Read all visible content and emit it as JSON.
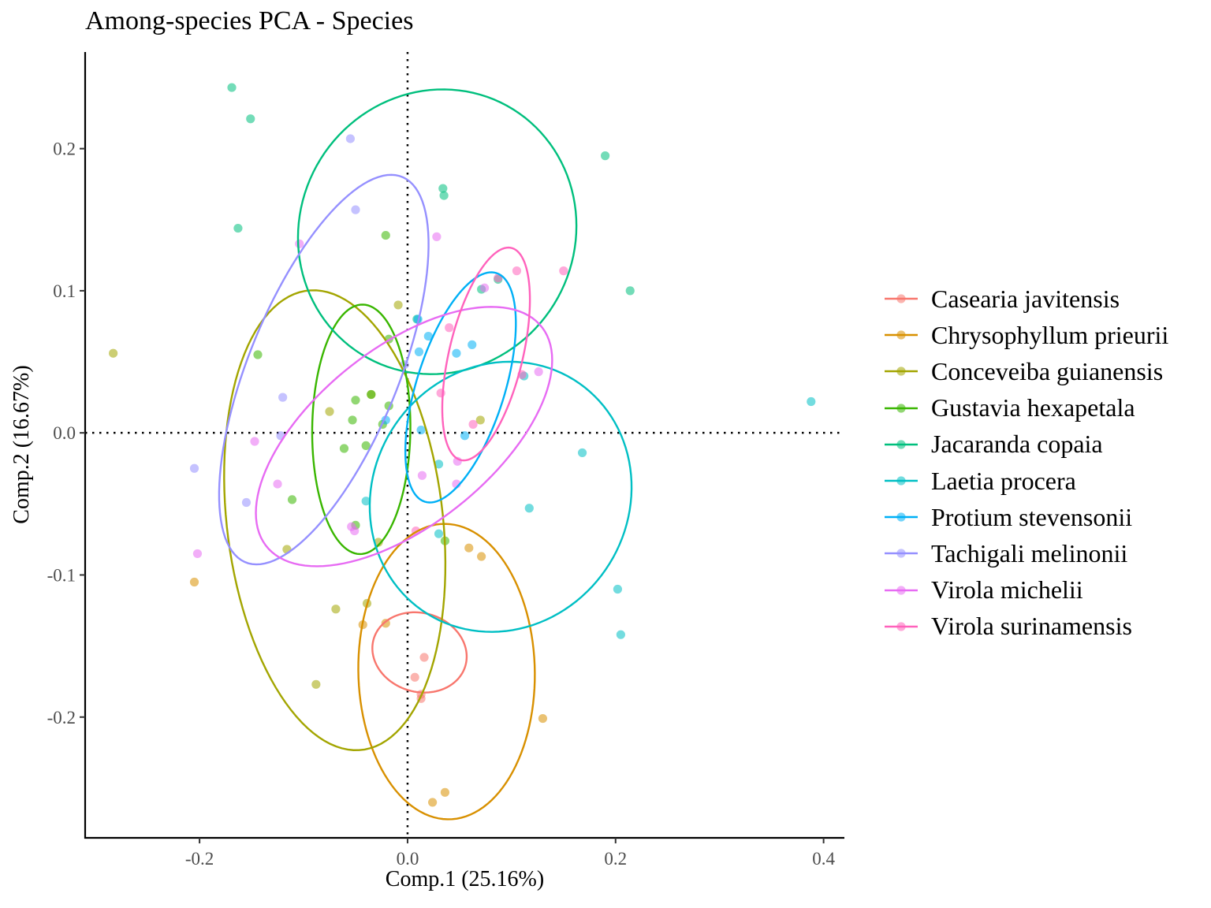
{
  "chart_data": {
    "type": "scatter",
    "title": "Among-species PCA - Species",
    "xlabel": "Comp.1 (25.16%)",
    "ylabel": "Comp.2 (16.67%)",
    "xlim": [
      -0.31,
      0.42
    ],
    "ylim": [
      -0.285,
      0.268
    ],
    "xticks": [
      -0.2,
      0.0,
      0.2,
      0.4
    ],
    "xtick_labels": [
      "-0.2",
      "0.0",
      "0.2",
      "0.4"
    ],
    "yticks": [
      -0.2,
      -0.1,
      0.0,
      0.1,
      0.2
    ],
    "ytick_labels": [
      "-0.2",
      "-0.1",
      "0.0",
      "0.1",
      "0.2"
    ],
    "reference_lines": {
      "x": 0,
      "y": 0,
      "style": "dotted"
    },
    "grid": false,
    "legend_position": "right",
    "series": [
      {
        "name": "Casearia javitensis",
        "color": "#F8766D",
        "points": [
          [
            0.016,
            -0.158
          ],
          [
            0.007,
            -0.172
          ],
          [
            0.013,
            -0.184
          ],
          [
            0.013,
            -0.187
          ]
        ],
        "ellipse": {
          "cx": 0.0115,
          "cy": -0.1545,
          "rx": 0.028,
          "ry": 0.0455,
          "angle": 84
        }
      },
      {
        "name": "Chrysophyllum prieurii",
        "color": "#D89000",
        "points": [
          [
            -0.205,
            -0.105
          ],
          [
            -0.043,
            -0.135
          ],
          [
            -0.021,
            -0.134
          ],
          [
            0.059,
            -0.081
          ],
          [
            0.071,
            -0.087
          ],
          [
            0.13,
            -0.201
          ],
          [
            0.036,
            -0.253
          ],
          [
            0.024,
            -0.26
          ]
        ],
        "ellipse": {
          "cx": 0.0375,
          "cy": -0.168,
          "rx": 0.104,
          "ry": 0.0848,
          "angle": 93
        }
      },
      {
        "name": "Conceveiba guianensis",
        "color": "#A3A500",
        "points": [
          [
            -0.283,
            0.056
          ],
          [
            -0.009,
            0.09
          ],
          [
            -0.035,
            0.027
          ],
          [
            -0.075,
            0.015
          ],
          [
            -0.116,
            -0.082
          ],
          [
            -0.028,
            -0.077
          ],
          [
            -0.069,
            -0.124
          ],
          [
            -0.039,
            -0.12
          ],
          [
            -0.088,
            -0.177
          ],
          [
            0.07,
            0.009
          ]
        ],
        "ellipse": {
          "cx": -0.07,
          "cy": -0.0615,
          "rx": 0.103,
          "ry": 0.164,
          "angle": 12
        }
      },
      {
        "name": "Gustavia hexapetala",
        "color": "#39B600",
        "points": [
          [
            -0.021,
            0.139
          ],
          [
            -0.144,
            0.055
          ],
          [
            -0.018,
            0.066
          ],
          [
            -0.05,
            0.023
          ],
          [
            -0.053,
            0.009
          ],
          [
            -0.035,
            0.027
          ],
          [
            -0.018,
            0.019
          ],
          [
            -0.024,
            0.006
          ],
          [
            -0.061,
            -0.011
          ],
          [
            -0.04,
            -0.009
          ],
          [
            -0.111,
            -0.047
          ],
          [
            -0.05,
            -0.065
          ],
          [
            0.036,
            -0.076
          ]
        ],
        "ellipse": {
          "cx": -0.0445,
          "cy": 0.0025,
          "rx": 0.0878,
          "ry": 0.0472,
          "angle": 89
        }
      },
      {
        "name": "Jacaranda copaia",
        "color": "#00BF7D",
        "points": [
          [
            -0.169,
            0.243
          ],
          [
            -0.151,
            0.221
          ],
          [
            -0.163,
            0.144
          ],
          [
            0.034,
            0.172
          ],
          [
            0.035,
            0.167
          ],
          [
            0.19,
            0.195
          ],
          [
            0.214,
            0.1
          ],
          [
            0.087,
            0.108
          ],
          [
            0.071,
            0.101
          ],
          [
            0.009,
            0.08
          ]
        ],
        "ellipse": {
          "cx": 0.0285,
          "cy": 0.1415,
          "rx": 0.134,
          "ry": 0.1,
          "angle": 4
        }
      },
      {
        "name": "Laetia procera",
        "color": "#00BFC4",
        "points": [
          [
            0.388,
            0.022
          ],
          [
            0.168,
            -0.014
          ],
          [
            0.117,
            -0.053
          ],
          [
            0.202,
            -0.11
          ],
          [
            0.205,
            -0.142
          ],
          [
            0.03,
            -0.022
          ],
          [
            -0.04,
            -0.048
          ],
          [
            0.112,
            0.04
          ],
          [
            0.03,
            -0.071
          ]
        ],
        "ellipse": {
          "cx": 0.0895,
          "cy": -0.045,
          "rx": 0.1263,
          "ry": 0.0945,
          "angle": 7
        }
      },
      {
        "name": "Protium stevensonii",
        "color": "#00B0F6",
        "points": [
          [
            0.01,
            0.08
          ],
          [
            0.02,
            0.068
          ],
          [
            0.011,
            0.057
          ],
          [
            0.047,
            0.056
          ],
          [
            0.062,
            0.062
          ],
          [
            0.055,
            -0.002
          ],
          [
            0.013,
            0.002
          ],
          [
            -0.021,
            0.009
          ]
        ],
        "ellipse": {
          "cx": 0.051,
          "cy": 0.032,
          "rx": 0.0879,
          "ry": 0.0407,
          "angle": 64
        }
      },
      {
        "name": "Tachigali melinonii",
        "color": "#9590FF",
        "points": [
          [
            -0.055,
            0.207
          ],
          [
            -0.05,
            0.157
          ],
          [
            -0.205,
            -0.025
          ],
          [
            -0.155,
            -0.049
          ],
          [
            -0.12,
            0.025
          ],
          [
            -0.122,
            -0.002
          ],
          [
            -0.003,
            0.048
          ]
        ],
        "ellipse": {
          "cx": -0.0805,
          "cy": 0.0445,
          "rx": 0.156,
          "ry": 0.0678,
          "angle": 58
        }
      },
      {
        "name": "Virola michelii",
        "color": "#E76BF3",
        "points": [
          [
            -0.104,
            0.133
          ],
          [
            0.028,
            0.138
          ],
          [
            -0.147,
            -0.006
          ],
          [
            -0.202,
            -0.085
          ],
          [
            -0.125,
            -0.036
          ],
          [
            -0.054,
            -0.066
          ],
          [
            -0.051,
            -0.069
          ],
          [
            0.014,
            -0.03
          ],
          [
            0.048,
            -0.02
          ],
          [
            0.047,
            -0.036
          ],
          [
            0.074,
            0.102
          ],
          [
            0.126,
            0.043
          ]
        ],
        "ellipse": {
          "cx": -0.0034,
          "cy": -0.0026,
          "rx": 0.155,
          "ry": 0.0678,
          "angle": 26
        }
      },
      {
        "name": "Virola surinamensis",
        "color": "#FF62BC",
        "points": [
          [
            0.105,
            0.114
          ],
          [
            0.15,
            0.114
          ],
          [
            0.087,
            0.109
          ],
          [
            0.04,
            0.074
          ],
          [
            0.032,
            0.028
          ],
          [
            0.063,
            0.006
          ],
          [
            0.11,
            0.041
          ],
          [
            0.008,
            -0.069
          ]
        ],
        "ellipse": {
          "cx": 0.0755,
          "cy": 0.0555,
          "rx": 0.0787,
          "ry": 0.0345,
          "angle": 70
        }
      }
    ]
  }
}
